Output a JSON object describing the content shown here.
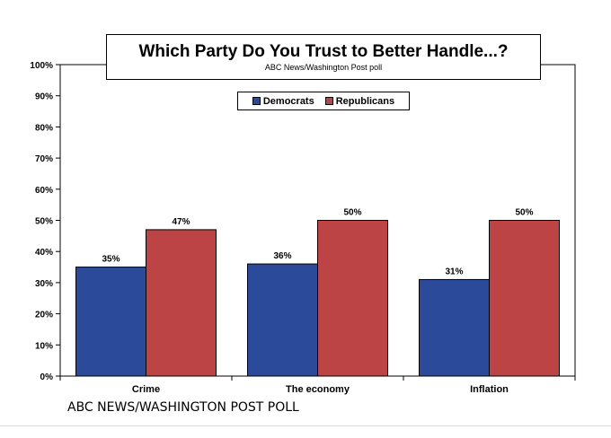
{
  "chart_data": {
    "type": "bar",
    "title": "Which Party Do You Trust to Better Handle...?",
    "subtitle": "ABC News/Washington Post poll",
    "categories": [
      "Crime",
      "The economy",
      "Inflation"
    ],
    "series": [
      {
        "name": "Democrats",
        "color": "#2b4a99",
        "values": [
          35,
          36,
          31
        ],
        "labels": [
          "35%",
          "36%",
          "31%"
        ]
      },
      {
        "name": "Republicans",
        "color": "#bc4444",
        "values": [
          47,
          50,
          50
        ],
        "labels": [
          "47%",
          "50%",
          "50%"
        ]
      }
    ],
    "ylim": [
      0,
      100
    ],
    "yticks": [
      0,
      10,
      20,
      30,
      40,
      50,
      60,
      70,
      80,
      90,
      100
    ],
    "ytick_labels": [
      "0%",
      "10%",
      "20%",
      "30%",
      "40%",
      "50%",
      "60%",
      "70%",
      "80%",
      "90%",
      "100%"
    ],
    "xlabel": "",
    "ylabel": "",
    "legend": "top-center"
  },
  "footer": "ABC NEWS/WASHINGTON POST POLL"
}
